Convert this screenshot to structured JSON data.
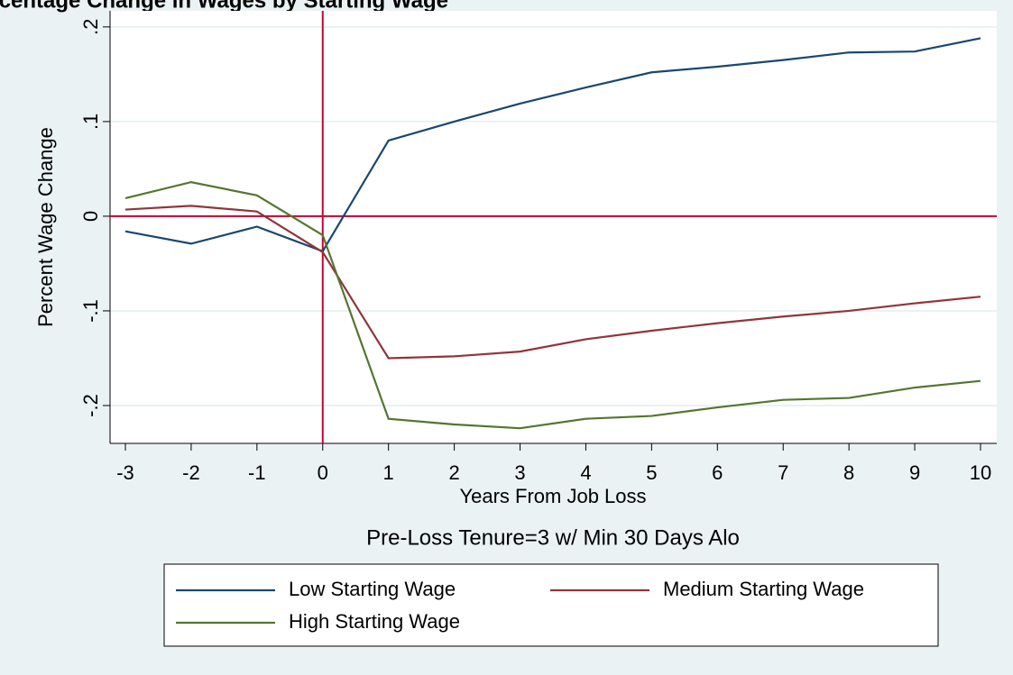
{
  "chart_data": {
    "type": "line",
    "title": "Percentage Change in Wages by Starting Wage",
    "x_label": "Years From Job Loss",
    "y_label": "Percent Wage Change",
    "note": "Pre-Loss Tenure=3 w/ Min 30 Days Alo",
    "x": [
      -3,
      -2,
      -1,
      0,
      1,
      2,
      3,
      4,
      5,
      6,
      7,
      8,
      9,
      10
    ],
    "series": [
      {
        "name": "Low Starting Wage",
        "color": "#1a476f",
        "values": [
          -0.016,
          -0.029,
          -0.011,
          -0.037,
          0.08,
          0.1,
          0.119,
          0.136,
          0.152,
          0.158,
          0.165,
          0.173,
          0.174,
          0.188
        ]
      },
      {
        "name": "Medium Starting Wage",
        "color": "#90353b",
        "values": [
          0.007,
          0.011,
          0.005,
          -0.038,
          -0.15,
          -0.148,
          -0.143,
          -0.13,
          -0.121,
          -0.113,
          -0.106,
          -0.1,
          -0.092,
          -0.085
        ]
      },
      {
        "name": "High Starting Wage",
        "color": "#55752f",
        "values": [
          0.019,
          0.036,
          0.022,
          -0.02,
          -0.214,
          -0.22,
          -0.224,
          -0.214,
          -0.211,
          -0.202,
          -0.194,
          -0.192,
          -0.181,
          -0.174
        ]
      }
    ],
    "xlim": [
      -3.233,
      10.247
    ],
    "ylim": [
      -0.24,
      0.217
    ],
    "xticks": [
      -3,
      -2,
      -1,
      0,
      1,
      2,
      3,
      4,
      5,
      6,
      7,
      8,
      9,
      10
    ],
    "yticks": [
      {
        "value": -0.2,
        "label": "-.2"
      },
      {
        "value": -0.1,
        "label": "-.1"
      },
      0,
      {
        "value": 0.1,
        "label": ".1"
      },
      {
        "value": 0.2,
        "label": ".2"
      }
    ],
    "grid": true,
    "reference_lines": {
      "x": 0,
      "y": 0,
      "color": "#c10534"
    }
  }
}
